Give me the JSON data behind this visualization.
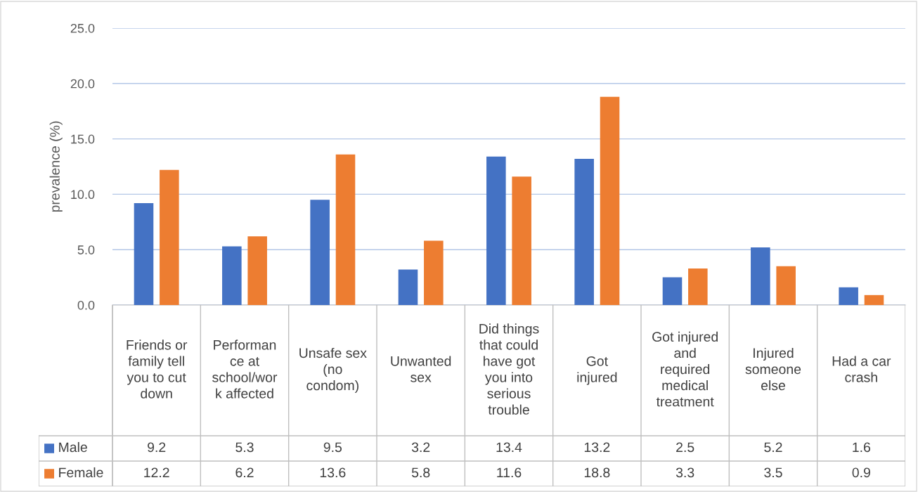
{
  "chart_data": {
    "type": "bar",
    "ylabel": "prevalence (%)",
    "categories": [
      "Friends or\nfamily tell\nyou to cut\ndown",
      "Performan\nce at\nschool/wor\nk affected",
      "Unsafe sex\n(no\ncondom)",
      "Unwanted\nsex",
      "Did things\nthat could\nhave got\nyou into\nserious\ntrouble",
      "Got\ninjured",
      "Got injured\nand\nrequired\nmedical\ntreatment",
      "Injured\nsomeone\nelse",
      "Had a car\ncrash"
    ],
    "series": [
      {
        "name": "Male",
        "color": "#4472c4",
        "values": [
          9.2,
          5.3,
          9.5,
          3.2,
          13.4,
          13.2,
          2.5,
          5.2,
          1.6
        ]
      },
      {
        "name": "Female",
        "color": "#ed7d31",
        "values": [
          12.2,
          6.2,
          13.6,
          5.8,
          11.6,
          18.8,
          3.3,
          3.5,
          0.9
        ]
      }
    ],
    "ylim": [
      0,
      25
    ],
    "yticks": [
      {
        "value": 0,
        "label": "0.0"
      },
      {
        "value": 5,
        "label": "5.0"
      },
      {
        "value": 10,
        "label": "10.0"
      },
      {
        "value": 15,
        "label": "15.0"
      },
      {
        "value": 20,
        "label": "20.0"
      },
      {
        "value": 25,
        "label": "25.0"
      }
    ],
    "grid": "y",
    "data_labels": true,
    "legend": "bottom"
  }
}
